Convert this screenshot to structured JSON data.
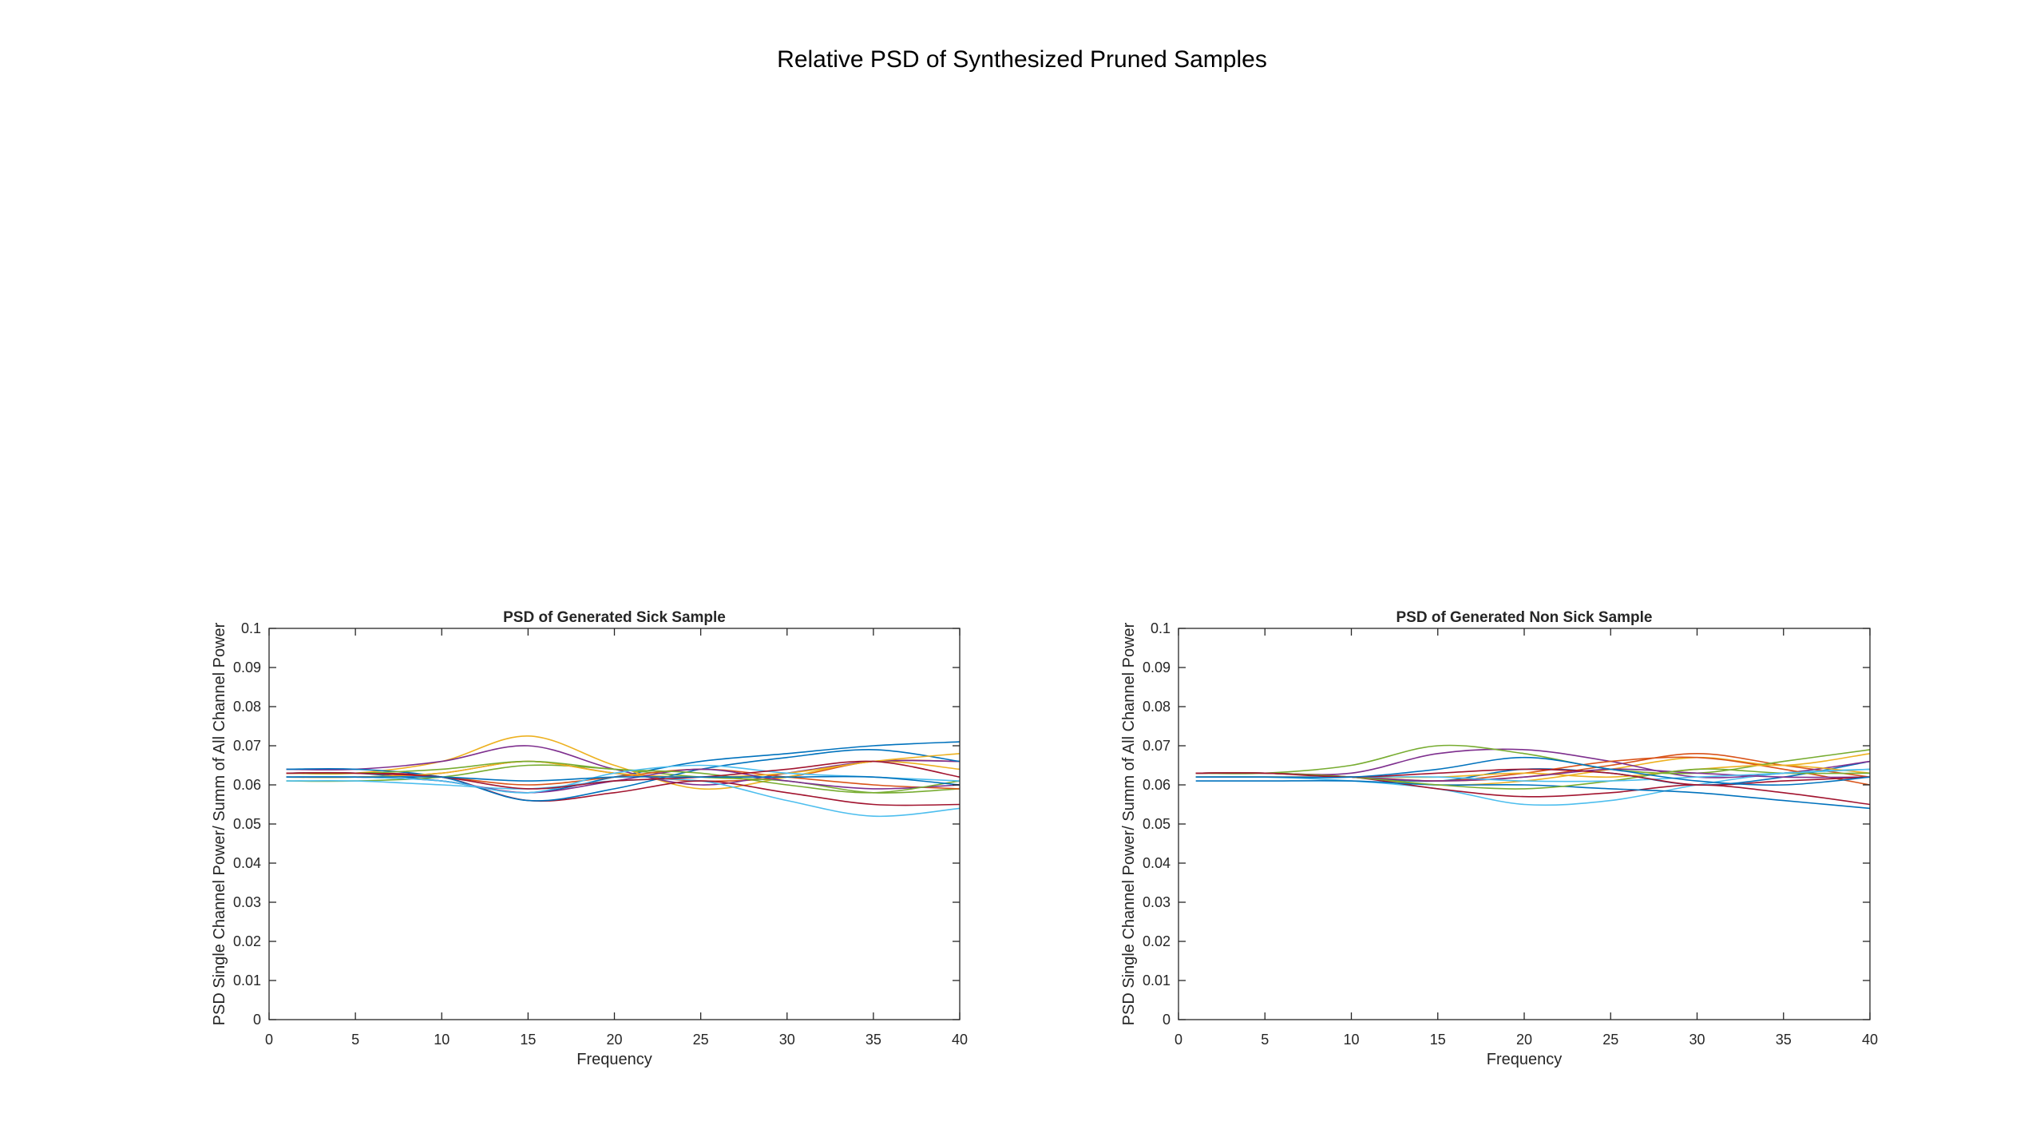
{
  "figure": {
    "title": "Relative PSD of Synthesized Pruned Samples"
  },
  "chart_data": [
    {
      "type": "line",
      "title": "PSD of Generated Sick Sample",
      "xlabel": "Frequency",
      "ylabel": "PSD Single Channel Power/ Summ of All Channel Power",
      "xlim": [
        0,
        40
      ],
      "ylim": [
        0,
        0.1
      ],
      "xticks": [
        0,
        5,
        10,
        15,
        20,
        25,
        30,
        35,
        40
      ],
      "yticks": [
        0,
        0.01,
        0.02,
        0.03,
        0.04,
        0.05,
        0.06,
        0.07,
        0.08,
        0.09,
        0.1
      ],
      "grid": false,
      "x": [
        1,
        5,
        10,
        15,
        20,
        25,
        30,
        35,
        40
      ],
      "series": [
        {
          "color": "#0072BD",
          "values": [
            0.063,
            0.063,
            0.061,
            0.058,
            0.062,
            0.066,
            0.068,
            0.07,
            0.071
          ]
        },
        {
          "color": "#D95319",
          "values": [
            0.062,
            0.062,
            0.063,
            0.066,
            0.063,
            0.061,
            0.062,
            0.066,
            0.066
          ]
        },
        {
          "color": "#EDB120",
          "values": [
            0.063,
            0.063,
            0.066,
            0.0725,
            0.065,
            0.059,
            0.062,
            0.066,
            0.064
          ]
        },
        {
          "color": "#7E2F8E",
          "values": [
            0.064,
            0.064,
            0.066,
            0.07,
            0.064,
            0.06,
            0.063,
            0.066,
            0.066
          ]
        },
        {
          "color": "#77AC30",
          "values": [
            0.061,
            0.061,
            0.062,
            0.065,
            0.064,
            0.062,
            0.061,
            0.058,
            0.059
          ]
        },
        {
          "color": "#4DBEEE",
          "values": [
            0.061,
            0.061,
            0.06,
            0.059,
            0.061,
            0.061,
            0.056,
            0.052,
            0.054
          ]
        },
        {
          "color": "#A2142F",
          "values": [
            0.063,
            0.063,
            0.062,
            0.056,
            0.058,
            0.061,
            0.058,
            0.055,
            0.055
          ]
        },
        {
          "color": "#0072BD",
          "values": [
            0.064,
            0.064,
            0.062,
            0.056,
            0.059,
            0.064,
            0.067,
            0.069,
            0.066
          ]
        },
        {
          "color": "#D95319",
          "values": [
            0.063,
            0.063,
            0.062,
            0.06,
            0.062,
            0.064,
            0.062,
            0.06,
            0.059
          ]
        },
        {
          "color": "#EDB120",
          "values": [
            0.062,
            0.062,
            0.063,
            0.066,
            0.063,
            0.062,
            0.063,
            0.066,
            0.068
          ]
        },
        {
          "color": "#7E2F8E",
          "values": [
            0.062,
            0.062,
            0.061,
            0.058,
            0.061,
            0.064,
            0.061,
            0.059,
            0.06
          ]
        },
        {
          "color": "#77AC30",
          "values": [
            0.063,
            0.063,
            0.064,
            0.066,
            0.064,
            0.063,
            0.06,
            0.058,
            0.061
          ]
        },
        {
          "color": "#4DBEEE",
          "values": [
            0.062,
            0.062,
            0.061,
            0.058,
            0.063,
            0.065,
            0.063,
            0.062,
            0.061
          ]
        },
        {
          "color": "#A2142F",
          "values": [
            0.063,
            0.063,
            0.062,
            0.059,
            0.061,
            0.062,
            0.064,
            0.066,
            0.062
          ]
        },
        {
          "color": "#0072BD",
          "values": [
            0.062,
            0.062,
            0.062,
            0.061,
            0.062,
            0.062,
            0.062,
            0.062,
            0.06
          ]
        }
      ]
    },
    {
      "type": "line",
      "title": "PSD of Generated Non Sick Sample",
      "xlabel": "Frequency",
      "ylabel": "PSD Single Channel Power/ Summ of All Channel Power",
      "xlim": [
        0,
        40
      ],
      "ylim": [
        0,
        0.1
      ],
      "xticks": [
        0,
        5,
        10,
        15,
        20,
        25,
        30,
        35,
        40
      ],
      "yticks": [
        0,
        0.01,
        0.02,
        0.03,
        0.04,
        0.05,
        0.06,
        0.07,
        0.08,
        0.09,
        0.1
      ],
      "grid": false,
      "x": [
        1,
        5,
        10,
        15,
        20,
        25,
        30,
        35,
        40
      ],
      "series": [
        {
          "color": "#0072BD",
          "values": [
            0.063,
            0.063,
            0.062,
            0.061,
            0.064,
            0.063,
            0.06,
            0.062,
            0.066
          ]
        },
        {
          "color": "#D95319",
          "values": [
            0.062,
            0.062,
            0.062,
            0.061,
            0.062,
            0.065,
            0.068,
            0.065,
            0.062
          ]
        },
        {
          "color": "#EDB120",
          "values": [
            0.063,
            0.063,
            0.062,
            0.06,
            0.061,
            0.064,
            0.067,
            0.065,
            0.068
          ]
        },
        {
          "color": "#7E2F8E",
          "values": [
            0.063,
            0.063,
            0.063,
            0.068,
            0.069,
            0.066,
            0.062,
            0.063,
            0.066
          ]
        },
        {
          "color": "#77AC30",
          "values": [
            0.063,
            0.063,
            0.065,
            0.07,
            0.068,
            0.064,
            0.063,
            0.066,
            0.069
          ]
        },
        {
          "color": "#4DBEEE",
          "values": [
            0.062,
            0.062,
            0.061,
            0.059,
            0.055,
            0.056,
            0.06,
            0.063,
            0.064
          ]
        },
        {
          "color": "#A2142F",
          "values": [
            0.063,
            0.063,
            0.062,
            0.059,
            0.057,
            0.058,
            0.06,
            0.058,
            0.055
          ]
        },
        {
          "color": "#0072BD",
          "values": [
            0.061,
            0.061,
            0.061,
            0.06,
            0.06,
            0.059,
            0.058,
            0.056,
            0.054
          ]
        },
        {
          "color": "#D95319",
          "values": [
            0.062,
            0.062,
            0.062,
            0.061,
            0.063,
            0.066,
            0.067,
            0.064,
            0.06
          ]
        },
        {
          "color": "#EDB120",
          "values": [
            0.062,
            0.062,
            0.062,
            0.062,
            0.063,
            0.062,
            0.064,
            0.065,
            0.063
          ]
        },
        {
          "color": "#7E2F8E",
          "values": [
            0.063,
            0.063,
            0.062,
            0.061,
            0.062,
            0.064,
            0.063,
            0.062,
            0.062
          ]
        },
        {
          "color": "#77AC30",
          "values": [
            0.063,
            0.063,
            0.062,
            0.06,
            0.059,
            0.061,
            0.064,
            0.063,
            0.063
          ]
        },
        {
          "color": "#4DBEEE",
          "values": [
            0.062,
            0.062,
            0.062,
            0.062,
            0.061,
            0.061,
            0.062,
            0.063,
            0.064
          ]
        },
        {
          "color": "#A2142F",
          "values": [
            0.063,
            0.063,
            0.062,
            0.063,
            0.064,
            0.063,
            0.06,
            0.061,
            0.062
          ]
        },
        {
          "color": "#0072BD",
          "values": [
            0.062,
            0.062,
            0.062,
            0.064,
            0.067,
            0.064,
            0.061,
            0.06,
            0.062
          ]
        }
      ]
    }
  ]
}
